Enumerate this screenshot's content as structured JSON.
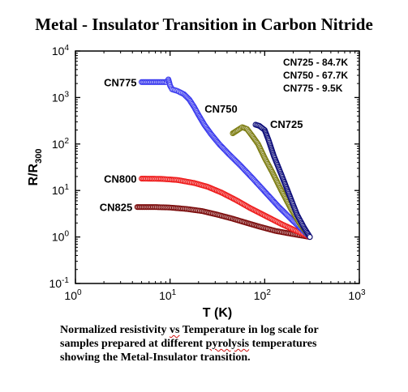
{
  "chart_data": {
    "type": "scatter",
    "title": "Metal - Insulator Transition in Carbon Nitride",
    "xlabel": "T (K)",
    "ylabel": "R/R",
    "ylabel_sub": "300",
    "xscale": "log",
    "yscale": "log",
    "xlim": [
      1,
      1000
    ],
    "ylim": [
      0.1,
      10000
    ],
    "x_ticks": [
      {
        "base": "10",
        "exp": "0",
        "value": 1
      },
      {
        "base": "10",
        "exp": "1",
        "value": 10
      },
      {
        "base": "10",
        "exp": "2",
        "value": 100
      },
      {
        "base": "10",
        "exp": "3",
        "value": 1000
      }
    ],
    "y_ticks": [
      {
        "base": "10",
        "exp": "-1",
        "value": 0.1
      },
      {
        "base": "10",
        "exp": "0",
        "value": 1
      },
      {
        "base": "10",
        "exp": "1",
        "value": 10
      },
      {
        "base": "10",
        "exp": "2",
        "value": 100
      },
      {
        "base": "10",
        "exp": "3",
        "value": 1000
      },
      {
        "base": "10",
        "exp": "4",
        "value": 10000
      }
    ],
    "annotation_box": [
      "CN725 - 84.7K",
      "CN750 - 67.7K",
      "CN775 - 9.5K"
    ],
    "series": [
      {
        "name": "CN775",
        "color": "#3a3aee",
        "points": [
          [
            5,
            2150
          ],
          [
            9.2,
            2150
          ],
          [
            9.6,
            2450
          ],
          [
            10.0,
            1800
          ],
          [
            10.5,
            1500
          ],
          [
            12,
            1380
          ],
          [
            14,
            1180
          ],
          [
            16,
            900
          ],
          [
            18,
            620
          ],
          [
            20,
            420
          ],
          [
            23,
            260
          ],
          [
            27,
            165
          ],
          [
            33,
            100
          ],
          [
            42,
            60
          ],
          [
            55,
            35
          ],
          [
            75,
            18
          ],
          [
            100,
            9.5
          ],
          [
            140,
            4.5
          ],
          [
            200,
            2.2
          ],
          [
            300,
            1.0
          ]
        ]
      },
      {
        "name": "CN750",
        "color": "#7d7d12",
        "points": [
          [
            46,
            170
          ],
          [
            52,
            200
          ],
          [
            58,
            230
          ],
          [
            65,
            210
          ],
          [
            72,
            160
          ],
          [
            85,
            100
          ],
          [
            100,
            50
          ],
          [
            120,
            25
          ],
          [
            150,
            10
          ],
          [
            190,
            4
          ],
          [
            240,
            1.8
          ],
          [
            300,
            1.0
          ]
        ]
      },
      {
        "name": "CN725",
        "color": "#0b0b78",
        "points": [
          [
            80,
            260
          ],
          [
            88,
            245
          ],
          [
            100,
            200
          ],
          [
            110,
            120
          ],
          [
            125,
            55
          ],
          [
            150,
            22
          ],
          [
            180,
            8.5
          ],
          [
            220,
            3.0
          ],
          [
            260,
            1.6
          ],
          [
            300,
            1.0
          ]
        ]
      },
      {
        "name": "CN800",
        "color": "#ee1a1a",
        "points": [
          [
            5,
            18
          ],
          [
            8,
            17.8
          ],
          [
            12,
            16.8
          ],
          [
            18,
            14.5
          ],
          [
            25,
            12
          ],
          [
            35,
            9
          ],
          [
            50,
            6.2
          ],
          [
            70,
            4.2
          ],
          [
            100,
            2.9
          ],
          [
            150,
            1.9
          ],
          [
            200,
            1.45
          ],
          [
            300,
            1.0
          ]
        ]
      },
      {
        "name": "CN825",
        "color": "#7a0a0a",
        "points": [
          [
            4.5,
            4.4
          ],
          [
            7,
            4.4
          ],
          [
            10,
            4.3
          ],
          [
            15,
            4.0
          ],
          [
            22,
            3.6
          ],
          [
            32,
            3.0
          ],
          [
            45,
            2.5
          ],
          [
            65,
            2.0
          ],
          [
            90,
            1.65
          ],
          [
            130,
            1.35
          ],
          [
            200,
            1.15
          ],
          [
            300,
            1.0
          ]
        ]
      }
    ],
    "series_label_positions": [
      "left",
      "upper-right",
      "upper-right",
      "left",
      "left"
    ],
    "grid": false,
    "legend": "inline labels"
  },
  "caption": {
    "line1": [
      "Normalized resistivity ",
      "vs",
      " Temperature in log scale for"
    ],
    "line2": [
      "samples prepared at different ",
      "pyrolysis",
      " temperatures"
    ],
    "line3": "showing the Metal-Insulator transition."
  }
}
